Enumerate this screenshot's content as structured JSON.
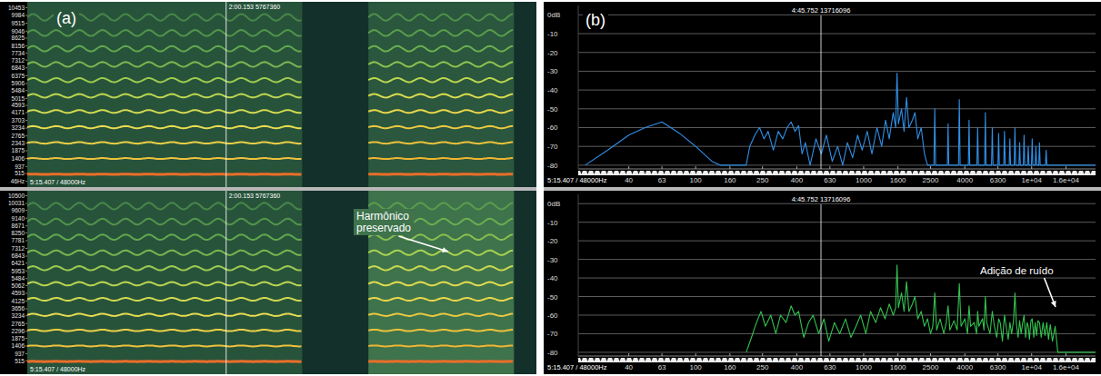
{
  "chart_data": [
    {
      "type": "spectrogram",
      "panel_label": "(a)",
      "xlim": [
        118.2,
        123.2
      ],
      "ylim": [
        -300,
        10800
      ],
      "yticks": [
        10453,
        9984,
        9515,
        9046,
        8625,
        8156,
        7734,
        7312,
        6843,
        6375,
        5906,
        5484,
        5015,
        4593,
        4171,
        3703,
        3234,
        2765,
        2343,
        1875,
        1406,
        937,
        515,
        {
          "value": 46,
          "label": "46Hz"
        }
      ],
      "cursor": {
        "value": 120.153,
        "label": "2:00.153 5767360"
      },
      "duration_label": "5:15.407 / 48000Hz",
      "segments": [
        {
          "start": 118.2,
          "end": 120.9,
          "noise_level": -70,
          "vibrato_hz": 4.4,
          "vibrato_depth": 0.02,
          "harmonics_hz": [
            470,
            1410,
            2350,
            3290,
            4230,
            5170,
            6110,
            7050,
            7990,
            8930,
            9870
          ],
          "levels": [
            0,
            -8,
            -10,
            -12,
            -15,
            -18,
            -22,
            -27,
            -31,
            -35,
            -38
          ]
        },
        {
          "start": 121.55,
          "end": 122.98,
          "noise_level": -68,
          "vibrato_hz": 4.4,
          "vibrato_depth": 0.02,
          "harmonics_hz": [
            470,
            1410,
            2350,
            3290,
            4230,
            5170,
            6110,
            7050,
            7990,
            8930,
            9870
          ],
          "levels": [
            0,
            -6,
            -8,
            -9,
            -11,
            -14,
            -18,
            -24,
            -29,
            -33,
            -36
          ]
        }
      ]
    },
    {
      "type": "spectrogram",
      "xlim": [
        118.2,
        123.2
      ],
      "ylim": [
        -300,
        10800
      ],
      "yticks": [
        10500,
        10031,
        9609,
        9140,
        8671,
        8250,
        7781,
        7312,
        6843,
        6421,
        5953,
        5484,
        5062,
        4593,
        4125,
        3656,
        3234,
        2765,
        2296,
        1875,
        1406,
        937,
        515
      ],
      "cursor": {
        "value": 120.153,
        "label": "2:00.153 5767360"
      },
      "duration_label": "5:15.407 / 48000Hz",
      "annotation": "Harmônico preservado",
      "segments": [
        {
          "start": 118.2,
          "end": 120.9,
          "noise_level": -70,
          "vibrato_hz": 4.4,
          "vibrato_depth": 0.02,
          "harmonics_hz": [
            470,
            1410,
            2350,
            3290,
            4230,
            5170,
            6110,
            7050,
            7990,
            8930,
            9870
          ],
          "levels": [
            0,
            -8,
            -10,
            -12,
            -15,
            -18,
            -22,
            -27,
            -31,
            -35,
            -38
          ]
        },
        {
          "start": 121.55,
          "end": 122.98,
          "noise_level": -56,
          "vibrato_hz": 4.4,
          "vibrato_depth": 0.02,
          "harmonics_hz": [
            470,
            1410,
            2350,
            3290,
            4230,
            5170,
            6110,
            7050,
            7990,
            8930,
            9870
          ],
          "levels": [
            0,
            -6,
            -8,
            -9,
            -11,
            -13,
            -16,
            -20,
            -25,
            -29,
            -33
          ]
        }
      ]
    },
    {
      "type": "line",
      "panel_label": "(b)",
      "log": "x",
      "grid": true,
      "color": "#2f8fe6",
      "xlim": [
        20,
        24000
      ],
      "ylim": [
        -82,
        5
      ],
      "xticks": [
        40,
        63,
        100,
        160,
        250,
        400,
        630,
        1000,
        1600,
        2500,
        4000,
        6300,
        {
          "value": 10000,
          "label": "1e+04"
        },
        {
          "value": 16000,
          "label": "1.6e+04"
        }
      ],
      "yticks": [
        {
          "value": 0,
          "label": "0dB"
        },
        -10,
        -20,
        -30,
        -40,
        -50,
        -60,
        -70,
        -80
      ],
      "cursor_label": "4:45.752 13716096",
      "duration_label": "5:15.407 / 48000Hz",
      "x": [
        22,
        30,
        40,
        50,
        63,
        80,
        100,
        125,
        140,
        200,
        210,
        225,
        240,
        255,
        270,
        290,
        310,
        330,
        350,
        370,
        390,
        410,
        430,
        450,
        480,
        520,
        560,
        600,
        650,
        700,
        750,
        800,
        860,
        920,
        980,
        1050,
        1120,
        1200,
        1280,
        1350,
        1420,
        1500,
        1550,
        1580,
        1610,
        1680,
        1740,
        1800,
        1860,
        1950,
        2020,
        2100,
        2200,
        2300,
        2400,
        2620,
        2650,
        2680,
        3150,
        3180,
        3210,
        3670,
        3710,
        3750,
        4200,
        4240,
        4280,
        4720,
        4770,
        4820,
        5250,
        5300,
        5350,
        5770,
        5830,
        5890,
        6300,
        6360,
        6420,
        6820,
        6890,
        6960,
        7350,
        7420,
        7490,
        7870,
        7950,
        8030,
        8400,
        8480,
        8560,
        8920,
        9010,
        9100,
        9440,
        9540,
        9640,
        9970,
        10070,
        10170,
        10490,
        10600,
        10710,
        11020,
        11130,
        11240,
        12080,
        12200,
        12320,
        24000
      ],
      "values": [
        -80,
        -72,
        -64,
        -60,
        -57,
        -63,
        -70,
        -78,
        -80,
        -80,
        -70,
        -64,
        -60,
        -66,
        -62,
        -72,
        -62,
        -66,
        -60,
        -57,
        -62,
        -59,
        -74,
        -68,
        -80,
        -66,
        -74,
        -64,
        -78,
        -70,
        -80,
        -68,
        -76,
        -64,
        -72,
        -62,
        -74,
        -60,
        -70,
        -56,
        -66,
        -52,
        -60,
        -31,
        -58,
        -50,
        -62,
        -44,
        -60,
        -56,
        -52,
        -66,
        -60,
        -74,
        -80,
        -80,
        -50,
        -80,
        -80,
        -58,
        -80,
        -80,
        -45,
        -80,
        -80,
        -56,
        -80,
        -80,
        -60,
        -80,
        -80,
        -52,
        -80,
        -80,
        -60,
        -80,
        -80,
        -63,
        -80,
        -80,
        -62,
        -80,
        -80,
        -66,
        -80,
        -80,
        -60,
        -80,
        -80,
        -68,
        -80,
        -80,
        -64,
        -80,
        -80,
        -70,
        -80,
        -80,
        -66,
        -80,
        -80,
        -70,
        -80,
        -80,
        -68,
        -80,
        -80,
        -72,
        -80,
        -80
      ]
    },
    {
      "type": "line",
      "log": "x",
      "grid": true,
      "color": "#33c24f",
      "xlim": [
        20,
        24000
      ],
      "ylim": [
        -82,
        5
      ],
      "xticks": [
        40,
        63,
        100,
        160,
        250,
        400,
        630,
        1000,
        1600,
        2500,
        4000,
        6300,
        {
          "value": 10000,
          "label": "1e+04"
        },
        {
          "value": 16000,
          "label": "1.6e+04"
        }
      ],
      "yticks": [
        {
          "value": 0,
          "label": "0dB"
        },
        -10,
        -20,
        -30,
        -40,
        -50,
        -60,
        -70,
        -80
      ],
      "cursor_label": "4:45.752 13716096",
      "duration_label": "5:15.407 / 48000Hz",
      "annotation": "Adição de ruído",
      "x": [
        200,
        215,
        230,
        245,
        260,
        280,
        300,
        320,
        345,
        370,
        390,
        410,
        440,
        470,
        500,
        540,
        580,
        620,
        670,
        720,
        780,
        840,
        900,
        960,
        1030,
        1100,
        1180,
        1260,
        1340,
        1420,
        1500,
        1550,
        1580,
        1610,
        1680,
        1740,
        1800,
        1860,
        1950,
        2020,
        2100,
        2200,
        2300,
        2400,
        2500,
        2580,
        2650,
        2720,
        2850,
        3000,
        3100,
        3180,
        3260,
        3450,
        3600,
        3710,
        3800,
        4000,
        4150,
        4240,
        4330,
        4550,
        4700,
        4770,
        4850,
        5100,
        5200,
        5300,
        5400,
        5650,
        5830,
        6000,
        6200,
        6360,
        6500,
        6700,
        6890,
        7050,
        7250,
        7420,
        7600,
        7800,
        7950,
        8100,
        8300,
        8480,
        8650,
        8850,
        9010,
        9200,
        9400,
        9540,
        9700,
        9900,
        10070,
        10300,
        10500,
        10700,
        10900,
        11130,
        11400,
        11700,
        12000,
        12300,
        12600,
        12900,
        13300,
        13800,
        14300,
        24000
      ],
      "values": [
        -80,
        -72,
        -64,
        -58,
        -66,
        -60,
        -70,
        -60,
        -64,
        -55,
        -60,
        -58,
        -72,
        -64,
        -60,
        -70,
        -62,
        -74,
        -64,
        -70,
        -62,
        -72,
        -66,
        -60,
        -70,
        -58,
        -64,
        -56,
        -62,
        -54,
        -60,
        -56,
        -33,
        -56,
        -48,
        -58,
        -42,
        -58,
        -54,
        -50,
        -62,
        -58,
        -66,
        -62,
        -70,
        -66,
        -48,
        -68,
        -62,
        -70,
        -64,
        -55,
        -68,
        -63,
        -68,
        -43,
        -66,
        -62,
        -70,
        -55,
        -66,
        -64,
        -70,
        -58,
        -66,
        -62,
        -68,
        -50,
        -64,
        -70,
        -58,
        -66,
        -72,
        -62,
        -64,
        -74,
        -60,
        -66,
        -73,
        -64,
        -70,
        -63,
        -48,
        -64,
        -72,
        -63,
        -70,
        -64,
        -60,
        -72,
        -64,
        -66,
        -73,
        -63,
        -62,
        -72,
        -64,
        -71,
        -63,
        -64,
        -72,
        -64,
        -71,
        -64,
        -73,
        -65,
        -74,
        -66,
        -80,
        -80
      ]
    }
  ]
}
